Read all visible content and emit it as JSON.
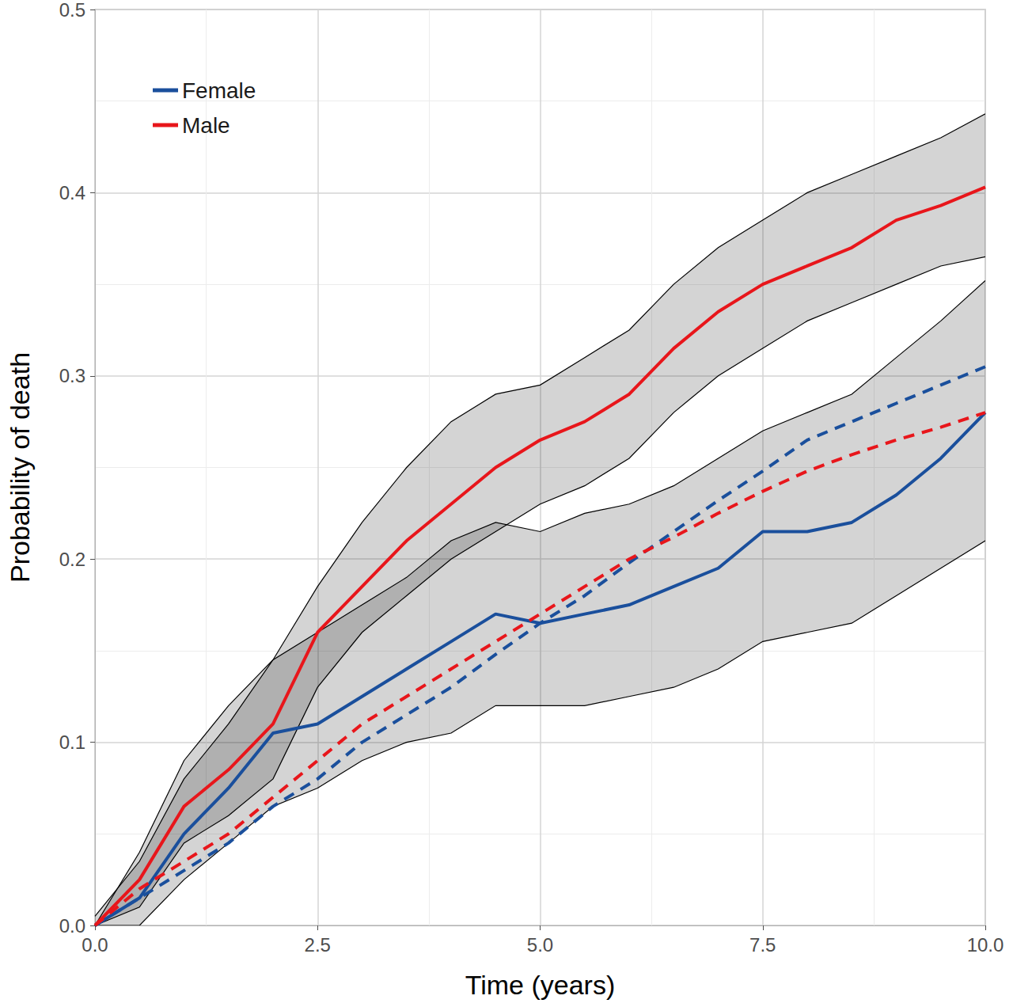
{
  "chart_data": {
    "type": "line",
    "x_label": "Time (years)",
    "y_label": "Probability of death",
    "x": [
      0,
      0.5,
      1,
      1.5,
      2,
      2.5,
      3,
      3.5,
      4,
      4.5,
      5,
      5.5,
      6,
      6.5,
      7,
      7.5,
      8,
      8.5,
      9,
      9.5,
      10
    ],
    "series": [
      {
        "name": "Female",
        "color": "#1a4f9c",
        "line_style": "solid",
        "values": [
          0,
          0.015,
          0.05,
          0.075,
          0.105,
          0.11,
          0.125,
          0.14,
          0.155,
          0.17,
          0.165,
          0.17,
          0.175,
          0.185,
          0.195,
          0.215,
          0.215,
          0.22,
          0.235,
          0.255,
          0.28
        ],
        "ci_lower": [
          0,
          0,
          0.025,
          0.045,
          0.065,
          0.075,
          0.09,
          0.1,
          0.105,
          0.12,
          0.12,
          0.12,
          0.125,
          0.13,
          0.14,
          0.155,
          0.16,
          0.165,
          0.18,
          0.195,
          0.21
        ],
        "ci_upper": [
          0.005,
          0.035,
          0.08,
          0.11,
          0.145,
          0.16,
          0.175,
          0.19,
          0.21,
          0.22,
          0.215,
          0.225,
          0.23,
          0.24,
          0.255,
          0.27,
          0.28,
          0.29,
          0.31,
          0.33,
          0.352
        ]
      },
      {
        "name": "Male",
        "color": "#e8161b",
        "line_style": "solid",
        "values": [
          0,
          0.025,
          0.065,
          0.085,
          0.11,
          0.16,
          0.185,
          0.21,
          0.23,
          0.25,
          0.265,
          0.275,
          0.29,
          0.315,
          0.335,
          0.35,
          0.36,
          0.37,
          0.385,
          0.393,
          0.403
        ],
        "ci_lower": [
          0,
          0.01,
          0.045,
          0.06,
          0.08,
          0.13,
          0.16,
          0.18,
          0.2,
          0.215,
          0.23,
          0.24,
          0.255,
          0.28,
          0.3,
          0.315,
          0.33,
          0.34,
          0.35,
          0.36,
          0.365
        ],
        "ci_upper": [
          0,
          0.04,
          0.09,
          0.12,
          0.145,
          0.185,
          0.22,
          0.25,
          0.275,
          0.29,
          0.295,
          0.31,
          0.325,
          0.35,
          0.37,
          0.385,
          0.4,
          0.41,
          0.42,
          0.43,
          0.443
        ]
      },
      {
        "name": "Female",
        "color": "#1a4f9c",
        "line_style": "dashed",
        "values": [
          0,
          0.015,
          0.03,
          0.045,
          0.065,
          0.08,
          0.1,
          0.115,
          0.13,
          0.148,
          0.165,
          0.18,
          0.198,
          0.215,
          0.232,
          0.248,
          0.265,
          0.275,
          0.285,
          0.295,
          0.305
        ]
      },
      {
        "name": "Male",
        "color": "#e8161b",
        "line_style": "dashed",
        "values": [
          0,
          0.02,
          0.035,
          0.05,
          0.07,
          0.09,
          0.11,
          0.125,
          0.14,
          0.155,
          0.17,
          0.185,
          0.2,
          0.212,
          0.225,
          0.237,
          0.248,
          0.257,
          0.265,
          0.272,
          0.28
        ]
      }
    ],
    "xlim": [
      0,
      10
    ],
    "xticks": [
      {
        "value": 0,
        "label": "0.0"
      },
      2.5,
      {
        "value": 5,
        "label": "5.0"
      },
      7.5,
      {
        "value": 10,
        "label": "10.0"
      }
    ],
    "ylim": [
      0,
      0.5
    ],
    "yticks": [
      {
        "value": 0,
        "label": "0.0"
      },
      0.1,
      0.2,
      0.3,
      0.4,
      0.5
    ],
    "grid": true,
    "legend": "top-left"
  }
}
